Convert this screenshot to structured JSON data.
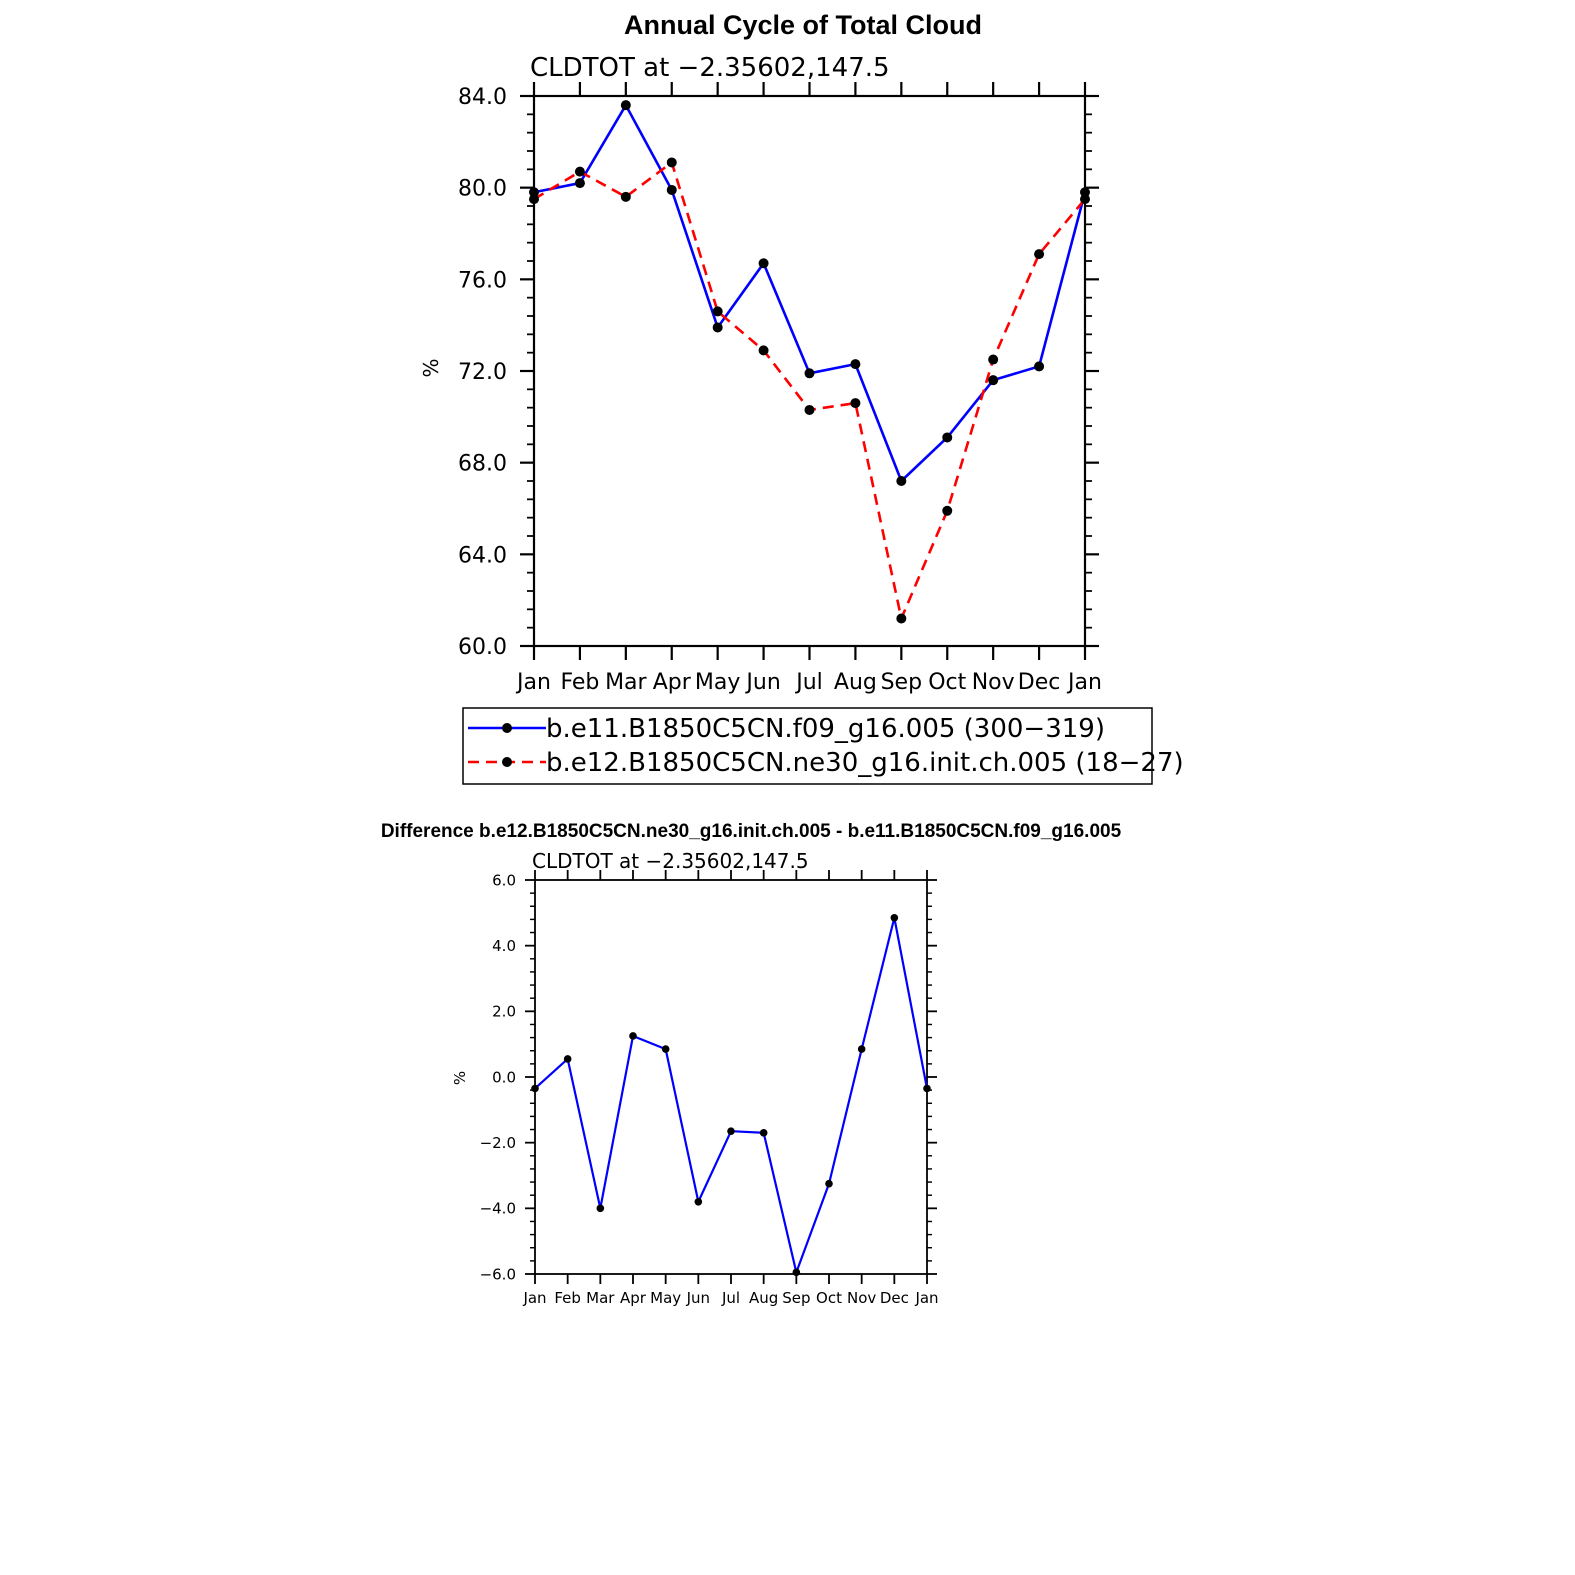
{
  "page_title": "Annual Cycle of Total Cloud",
  "diff_title": "Difference b.e12.B1850C5CN.ne30_g16.init.ch.005 - b.e11.B1850C5CN.f09_g16.005",
  "chart_data": [
    {
      "type": "line",
      "title": "Annual Cycle of Total Cloud",
      "subtitle": "CLDTOT at −2.35602,147.5",
      "xlabel": "",
      "ylabel": "%",
      "categories": [
        "Jan",
        "Feb",
        "Mar",
        "Apr",
        "May",
        "Jun",
        "Jul",
        "Aug",
        "Sep",
        "Oct",
        "Nov",
        "Dec",
        "Jan"
      ],
      "ylim": [
        60,
        84
      ],
      "yticks": [
        60,
        64,
        68,
        72,
        76,
        80,
        84
      ],
      "ytick_labels": [
        "60.0",
        "64.0",
        "68.0",
        "72.0",
        "76.0",
        "80.0",
        "84.0"
      ],
      "grid": false,
      "legend_position": "bottom",
      "series": [
        {
          "name": "b.e11.B1850C5CN.f09_g16.005 (300−319)",
          "color": "#0000ff",
          "dash": "solid",
          "values": [
            79.8,
            80.2,
            83.6,
            79.9,
            73.9,
            76.7,
            71.9,
            72.3,
            67.2,
            69.1,
            71.6,
            72.2,
            79.8
          ]
        },
        {
          "name": "b.e12.B1850C5CN.ne30_g16.init.ch.005 (18−27)",
          "color": "#ff0000",
          "dash": "dashed",
          "values": [
            79.5,
            80.7,
            79.6,
            81.1,
            74.6,
            72.9,
            70.3,
            70.6,
            61.2,
            65.9,
            72.5,
            77.1,
            79.5
          ]
        }
      ]
    },
    {
      "type": "line",
      "title": "Difference b.e12.B1850C5CN.ne30_g16.init.ch.005 - b.e11.B1850C5CN.f09_g16.005",
      "subtitle": "CLDTOT at −2.35602,147.5",
      "xlabel": "",
      "ylabel": "%",
      "categories": [
        "Jan",
        "Feb",
        "Mar",
        "Apr",
        "May",
        "Jun",
        "Jul",
        "Aug",
        "Sep",
        "Oct",
        "Nov",
        "Dec",
        "Jan"
      ],
      "ylim": [
        -6,
        6
      ],
      "yticks": [
        -6,
        -4,
        -2,
        0,
        2,
        4,
        6
      ],
      "ytick_labels": [
        "−6.0",
        "−4.0",
        "−2.0",
        "0.0",
        "2.0",
        "4.0",
        "6.0"
      ],
      "grid": false,
      "series": [
        {
          "name": "Difference",
          "color": "#0000ff",
          "dash": "solid",
          "values": [
            -0.35,
            0.55,
            -4.0,
            1.25,
            0.85,
            -3.8,
            -1.65,
            -1.7,
            -5.95,
            -3.25,
            0.85,
            4.85,
            -0.35
          ]
        }
      ]
    }
  ]
}
